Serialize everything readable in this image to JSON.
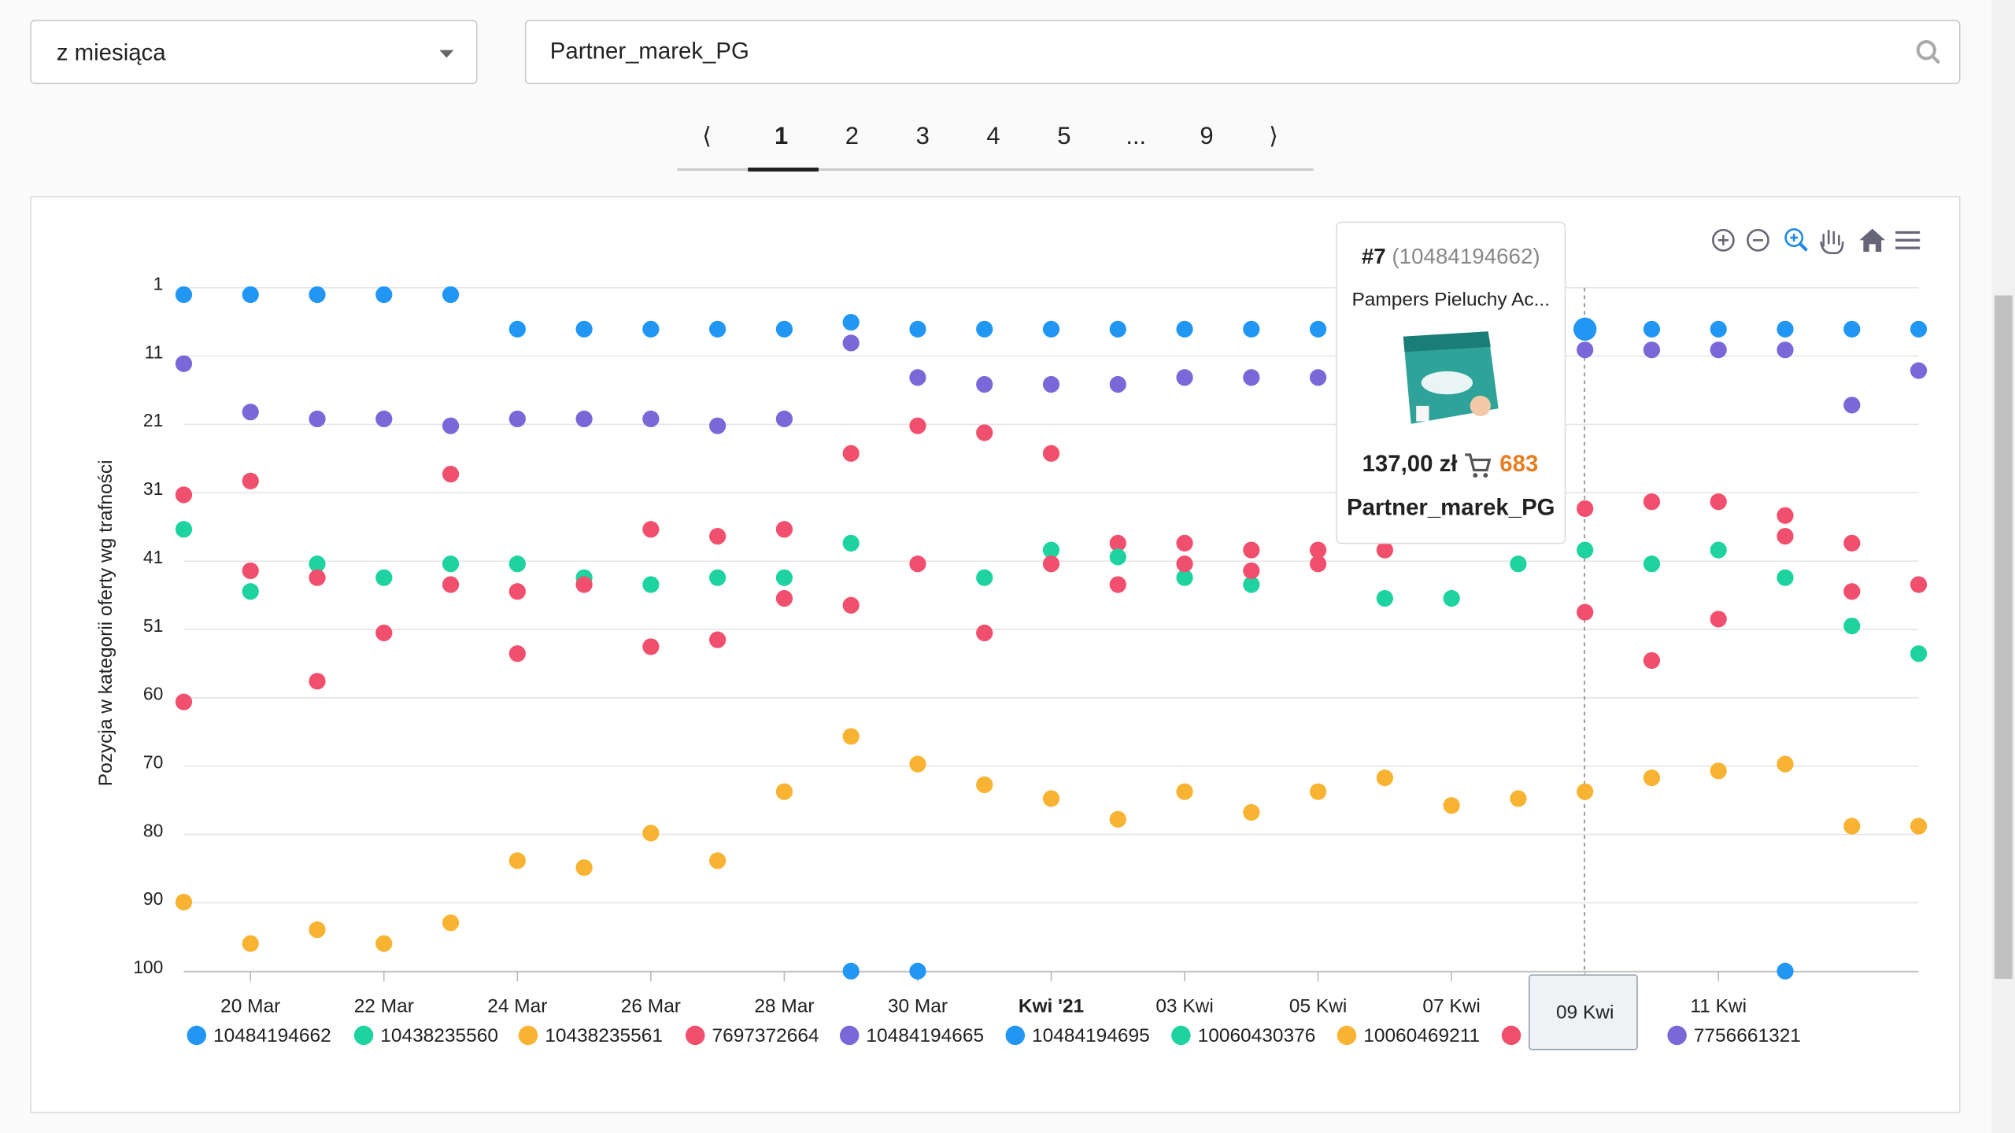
{
  "filters": {
    "period": "z miesiąca",
    "search": "Partner_marek_PG"
  },
  "pagination": {
    "prev": "⟨",
    "pages": [
      "1",
      "2",
      "3",
      "4",
      "5",
      "...",
      "9"
    ],
    "next": "⟩"
  },
  "tooltip": {
    "rank": "#7",
    "id": "(10484194662)",
    "product": "Pampers Pieluchy Ac...",
    "price": "137,00 zł",
    "sales": "683",
    "seller": "Partner_marek_PG"
  },
  "chart_data": {
    "type": "scatter",
    "y_label": "Pozycja w kategorii oferty wg trafności",
    "y_reversed": true,
    "grid": true,
    "categories": [
      null,
      "20 Mar",
      null,
      "22 Mar",
      null,
      "24 Mar",
      null,
      "26 Mar",
      null,
      "28 Mar",
      null,
      "30 Mar",
      null,
      "Kwi '21",
      null,
      "03 Kwi",
      null,
      "05 Kwi",
      null,
      "07 Kwi",
      null,
      "09 Kwi",
      null,
      "11 Kwi",
      null,
      null,
      null
    ],
    "ylim": [
      1,
      100
    ],
    "yticks": [
      1,
      {
        "value": 10.9,
        "label": "11"
      },
      {
        "value": 20.8,
        "label": "21"
      },
      {
        "value": 30.7,
        "label": "31"
      },
      {
        "value": 40.6,
        "label": "41"
      },
      {
        "value": 50.5,
        "label": "51"
      },
      {
        "value": 60.4,
        "label": "60"
      },
      {
        "value": 70.3,
        "label": "70"
      },
      {
        "value": 80.2,
        "label": "80"
      },
      {
        "value": 90.1,
        "label": "90"
      },
      100
    ],
    "series": [
      {
        "name": "10484194662",
        "color": "#2196f3",
        "values": [
          2,
          2,
          2,
          2,
          2,
          7,
          7,
          7,
          7,
          7,
          6,
          7,
          7,
          7,
          7,
          7,
          7,
          7,
          null,
          null,
          null,
          7,
          7,
          7,
          7,
          7,
          7
        ]
      },
      {
        "name": "10438235560",
        "color": "#1fd3a0",
        "values": [
          36,
          45,
          41,
          43,
          41,
          41,
          43,
          44,
          43,
          43,
          null,
          null,
          null,
          null,
          null,
          null,
          null,
          null,
          null,
          null,
          null,
          null,
          null,
          null,
          null,
          null,
          null
        ]
      },
      {
        "name": "10438235561",
        "color": "#f8b333",
        "values": [
          90,
          96,
          94,
          96,
          93,
          84,
          85,
          80,
          84,
          74,
          null,
          null,
          null,
          null,
          null,
          null,
          null,
          null,
          null,
          null,
          null,
          null,
          null,
          null,
          null,
          null,
          null
        ]
      },
      {
        "name": "7697372664",
        "color": "#f0506e",
        "values": [
          31,
          29,
          43,
          null,
          28,
          45,
          null,
          36,
          37,
          36,
          25,
          21,
          22,
          25,
          38,
          38,
          39,
          39,
          39,
          null,
          null,
          33,
          32,
          32,
          34,
          38,
          null
        ]
      },
      {
        "name": "10484194665",
        "color": "#7b68d8",
        "values": [
          12,
          19,
          20,
          20,
          21,
          20,
          20,
          20,
          21,
          20,
          null,
          null,
          null,
          null,
          null,
          null,
          null,
          null,
          null,
          null,
          null,
          null,
          null,
          null,
          null,
          null,
          null
        ]
      },
      {
        "name": "10484194695",
        "color": "#2196f3",
        "values": [
          null,
          null,
          null,
          null,
          null,
          null,
          null,
          null,
          null,
          null,
          100,
          100,
          null,
          null,
          null,
          null,
          null,
          null,
          null,
          null,
          null,
          null,
          null,
          null,
          100,
          null,
          null
        ]
      },
      {
        "name": "10060430376",
        "color": "#1fd3a0",
        "values": [
          null,
          null,
          null,
          null,
          null,
          null,
          null,
          null,
          null,
          null,
          38,
          null,
          43,
          39,
          40,
          43,
          44,
          null,
          46,
          46,
          41,
          39,
          41,
          39,
          43,
          50,
          54
        ]
      },
      {
        "name": "10060469211",
        "color": "#f8b333",
        "values": [
          null,
          null,
          null,
          null,
          null,
          null,
          null,
          null,
          null,
          null,
          66,
          70,
          73,
          75,
          78,
          74,
          77,
          74,
          72,
          76,
          75,
          74,
          72,
          71,
          70,
          79,
          79
        ]
      },
      {
        "name": null,
        "color": "#f0506e",
        "values": [
          61,
          42,
          58,
          51,
          44,
          54,
          44,
          53,
          52,
          46,
          47,
          41,
          51,
          41,
          44,
          41,
          42,
          41,
          null,
          null,
          null,
          48,
          55,
          49,
          37,
          45,
          44
        ]
      },
      {
        "name": "7756661321",
        "color": "#7b68d8",
        "values": [
          null,
          null,
          null,
          null,
          null,
          null,
          null,
          null,
          null,
          null,
          9,
          14,
          15,
          15,
          15,
          14,
          14,
          14,
          null,
          null,
          null,
          10,
          10,
          10,
          10,
          18,
          13
        ]
      }
    ]
  }
}
